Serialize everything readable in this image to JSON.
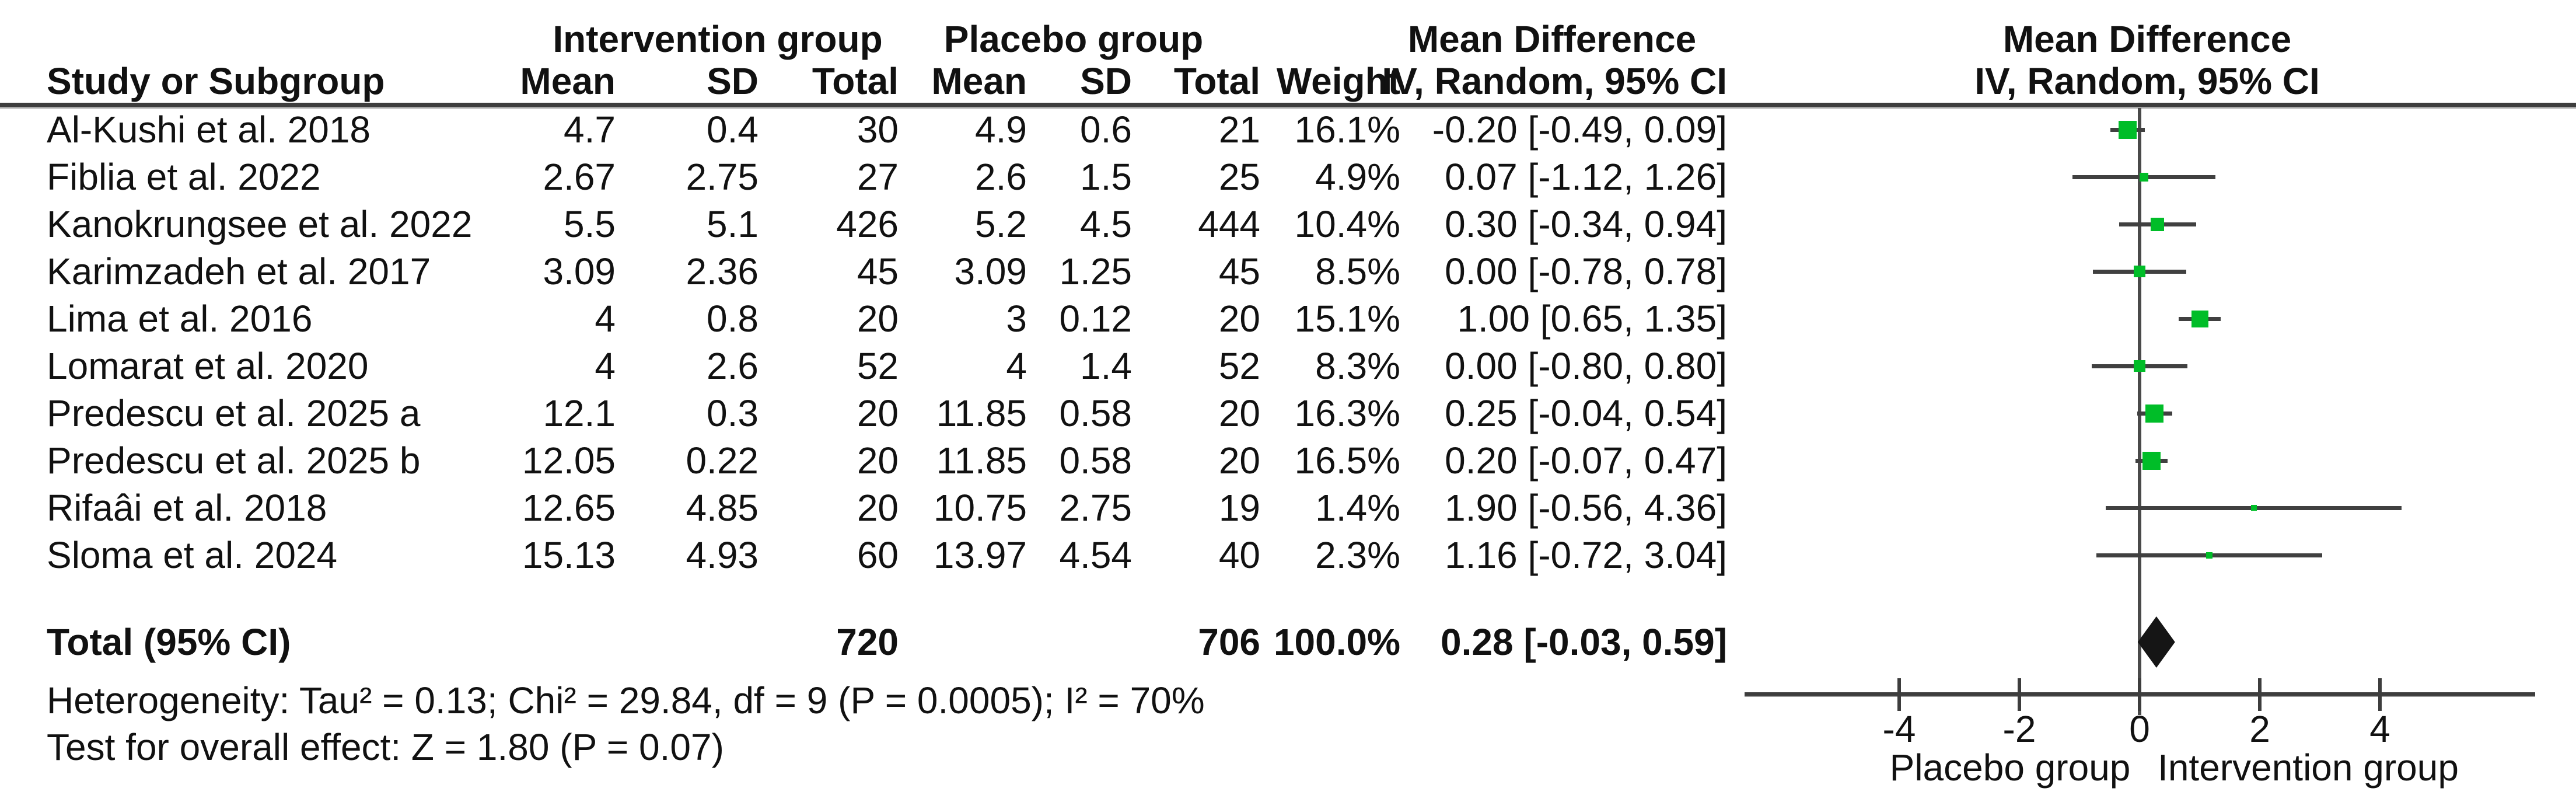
{
  "header": {
    "study_col": "Study or Subgroup",
    "group1": "Intervention group",
    "group2": "Placebo group",
    "mean": "Mean",
    "sd": "SD",
    "total": "Total",
    "weight": "Weight",
    "effect_col_line1": "Mean Difference",
    "effect_col_line2": "IV, Random, 95% CI",
    "plot_col_line1": "Mean Difference",
    "plot_col_line2": "IV, Random, 95% CI"
  },
  "chart_data": {
    "type": "scatter",
    "variant": "forest-plot",
    "title": "Mean Difference IV, Random, 95% CI",
    "x_ticks": [
      -4,
      -2,
      0,
      2,
      4
    ],
    "xlim": [
      -6.6,
      6.6
    ],
    "zero_line_x": 0,
    "axis_left_label": "Placebo group",
    "axis_right_label": "Intervention group",
    "marker_color": "#00bd28",
    "diamond_color": "#151515",
    "studies": [
      {
        "name": "Al-Kushi et al. 2018",
        "mean1": "4.7",
        "sd1": "0.4",
        "total1": "30",
        "mean2": "4.9",
        "sd2": "0.6",
        "total2": "21",
        "weight": "16.1%",
        "ci_label": "-0.20 [-0.49, 0.09]",
        "md": -0.2,
        "lo": -0.49,
        "hi": 0.09,
        "w": 16.1
      },
      {
        "name": "Fiblia et al. 2022",
        "mean1": "2.67",
        "sd1": "2.75",
        "total1": "27",
        "mean2": "2.6",
        "sd2": "1.5",
        "total2": "25",
        "weight": "4.9%",
        "ci_label": "0.07 [-1.12, 1.26]",
        "md": 0.07,
        "lo": -1.12,
        "hi": 1.26,
        "w": 4.9
      },
      {
        "name": "Kanokrungsee et al. 2022",
        "mean1": "5.5",
        "sd1": "5.1",
        "total1": "426",
        "mean2": "5.2",
        "sd2": "4.5",
        "total2": "444",
        "weight": "10.4%",
        "ci_label": "0.30 [-0.34, 0.94]",
        "md": 0.3,
        "lo": -0.34,
        "hi": 0.94,
        "w": 10.4
      },
      {
        "name": "Karimzadeh et al. 2017",
        "mean1": "3.09",
        "sd1": "2.36",
        "total1": "45",
        "mean2": "3.09",
        "sd2": "1.25",
        "total2": "45",
        "weight": "8.5%",
        "ci_label": "0.00 [-0.78, 0.78]",
        "md": 0.0,
        "lo": -0.78,
        "hi": 0.78,
        "w": 8.5
      },
      {
        "name": "Lima et al. 2016",
        "mean1": "4",
        "sd1": "0.8",
        "total1": "20",
        "mean2": "3",
        "sd2": "0.12",
        "total2": "20",
        "weight": "15.1%",
        "ci_label": "1.00 [0.65, 1.35]",
        "md": 1.0,
        "lo": 0.65,
        "hi": 1.35,
        "w": 15.1
      },
      {
        "name": "Lomarat et al. 2020",
        "mean1": "4",
        "sd1": "2.6",
        "total1": "52",
        "mean2": "4",
        "sd2": "1.4",
        "total2": "52",
        "weight": "8.3%",
        "ci_label": "0.00 [-0.80, 0.80]",
        "md": 0.0,
        "lo": -0.8,
        "hi": 0.8,
        "w": 8.3
      },
      {
        "name": "Predescu et al. 2025 a",
        "mean1": "12.1",
        "sd1": "0.3",
        "total1": "20",
        "mean2": "11.85",
        "sd2": "0.58",
        "total2": "20",
        "weight": "16.3%",
        "ci_label": "0.25 [-0.04, 0.54]",
        "md": 0.25,
        "lo": -0.04,
        "hi": 0.54,
        "w": 16.3
      },
      {
        "name": "Predescu et al. 2025 b",
        "mean1": "12.05",
        "sd1": "0.22",
        "total1": "20",
        "mean2": "11.85",
        "sd2": "0.58",
        "total2": "20",
        "weight": "16.5%",
        "ci_label": "0.20 [-0.07, 0.47]",
        "md": 0.2,
        "lo": -0.07,
        "hi": 0.47,
        "w": 16.5
      },
      {
        "name": "Rifaâi et al. 2018",
        "mean1": "12.65",
        "sd1": "4.85",
        "total1": "20",
        "mean2": "10.75",
        "sd2": "2.75",
        "total2": "19",
        "weight": "1.4%",
        "ci_label": "1.90 [-0.56, 4.36]",
        "md": 1.9,
        "lo": -0.56,
        "hi": 4.36,
        "w": 1.4
      },
      {
        "name": "Sloma et al. 2024",
        "mean1": "15.13",
        "sd1": "4.93",
        "total1": "60",
        "mean2": "13.97",
        "sd2": "4.54",
        "total2": "40",
        "weight": "2.3%",
        "ci_label": "1.16 [-0.72, 3.04]",
        "md": 1.16,
        "lo": -0.72,
        "hi": 3.04,
        "w": 2.3
      }
    ],
    "total": {
      "label": "Total (95% CI)",
      "total1": "720",
      "total2": "706",
      "weight": "100.0%",
      "ci_label": "0.28 [-0.03, 0.59]",
      "md": 0.28,
      "lo": -0.03,
      "hi": 0.59
    }
  },
  "footnotes": {
    "heterogeneity": "Heterogeneity: Tau² = 0.13; Chi² = 29.84, df = 9 (P = 0.0005); I² = 70%",
    "overall_effect": "Test for overall effect: Z = 1.80 (P = 0.07)"
  }
}
